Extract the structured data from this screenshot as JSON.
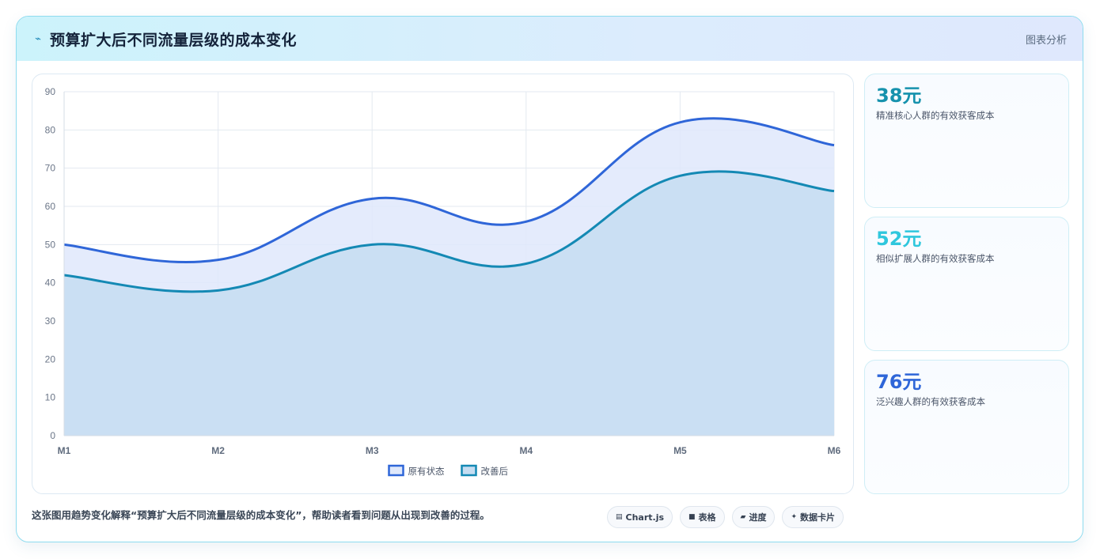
{
  "header": {
    "icon": "trend-line-icon",
    "title": "预算扩大后不同流量层级的成本变化",
    "analysis_label": "图表分析"
  },
  "chart_data": {
    "type": "area",
    "categories": [
      "M1",
      "M2",
      "M3",
      "M4",
      "M5",
      "M6"
    ],
    "series": [
      {
        "name": "原有状态",
        "values": [
          50,
          46,
          62,
          56,
          82,
          76
        ],
        "color": "#2f66d8",
        "fill": "#dfe8fb"
      },
      {
        "name": "改善后",
        "values": [
          42,
          38,
          50,
          45,
          68,
          64
        ],
        "color": "#1489b4",
        "fill": "#c6ddf1"
      }
    ],
    "ylim": [
      0,
      90
    ],
    "yticks": [
      0,
      10,
      20,
      30,
      40,
      50,
      60,
      70,
      80,
      90
    ],
    "grid": true,
    "legend": "bottom-center",
    "smooth": true
  },
  "stats": [
    {
      "value": "38元",
      "label": "精准核心人群的有效获客成本",
      "color": "#1692ad"
    },
    {
      "value": "52元",
      "label": "相似扩展人群的有效获客成本",
      "color": "#2fc7dd"
    },
    {
      "value": "76元",
      "label": "泛兴趣人群的有效获客成本",
      "color": "#2f66d8"
    }
  ],
  "footer": {
    "description": "这张图用趋势变化解释“预算扩大后不同流量层级的成本变化”，帮助读者看到问题从出现到改善的过程。",
    "pills": [
      {
        "icon": "chart-icon",
        "glyph": "▤",
        "label": "Chart.js"
      },
      {
        "icon": "table-icon",
        "glyph": "■",
        "label": "表格"
      },
      {
        "icon": "progress-icon",
        "glyph": "▰",
        "label": "进度"
      },
      {
        "icon": "sparkle-icon",
        "glyph": "✦",
        "label": "数据卡片"
      }
    ]
  }
}
